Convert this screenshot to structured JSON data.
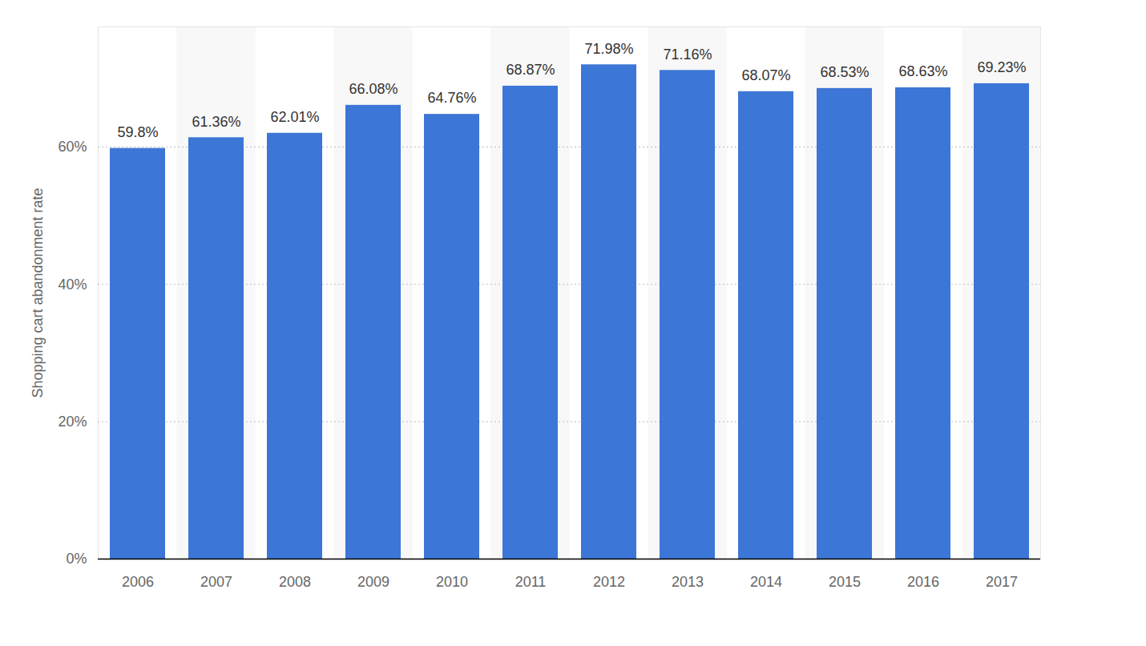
{
  "chart_data": {
    "type": "bar",
    "categories": [
      "2006",
      "2007",
      "2008",
      "2009",
      "2010",
      "2011",
      "2012",
      "2013",
      "2014",
      "2015",
      "2016",
      "2017"
    ],
    "values": [
      59.8,
      61.36,
      62.01,
      66.08,
      64.76,
      68.87,
      71.98,
      71.16,
      68.07,
      68.53,
      68.63,
      69.23
    ],
    "value_labels": [
      "59.8%",
      "61.36%",
      "62.01%",
      "66.08%",
      "64.76%",
      "68.87%",
      "71.98%",
      "71.16%",
      "68.07%",
      "68.53%",
      "68.63%",
      "69.23%"
    ],
    "color": "#3c76d7",
    "y_label": "Shopping cart abandonment rate",
    "ylim": [
      0,
      77.5
    ],
    "yticks": [
      {
        "value": 0,
        "label": "0%"
      },
      {
        "value": 20,
        "label": "20%"
      },
      {
        "value": 40,
        "label": "40%"
      },
      {
        "value": 60,
        "label": "60%"
      }
    ],
    "grid": true,
    "data_labels": true
  }
}
